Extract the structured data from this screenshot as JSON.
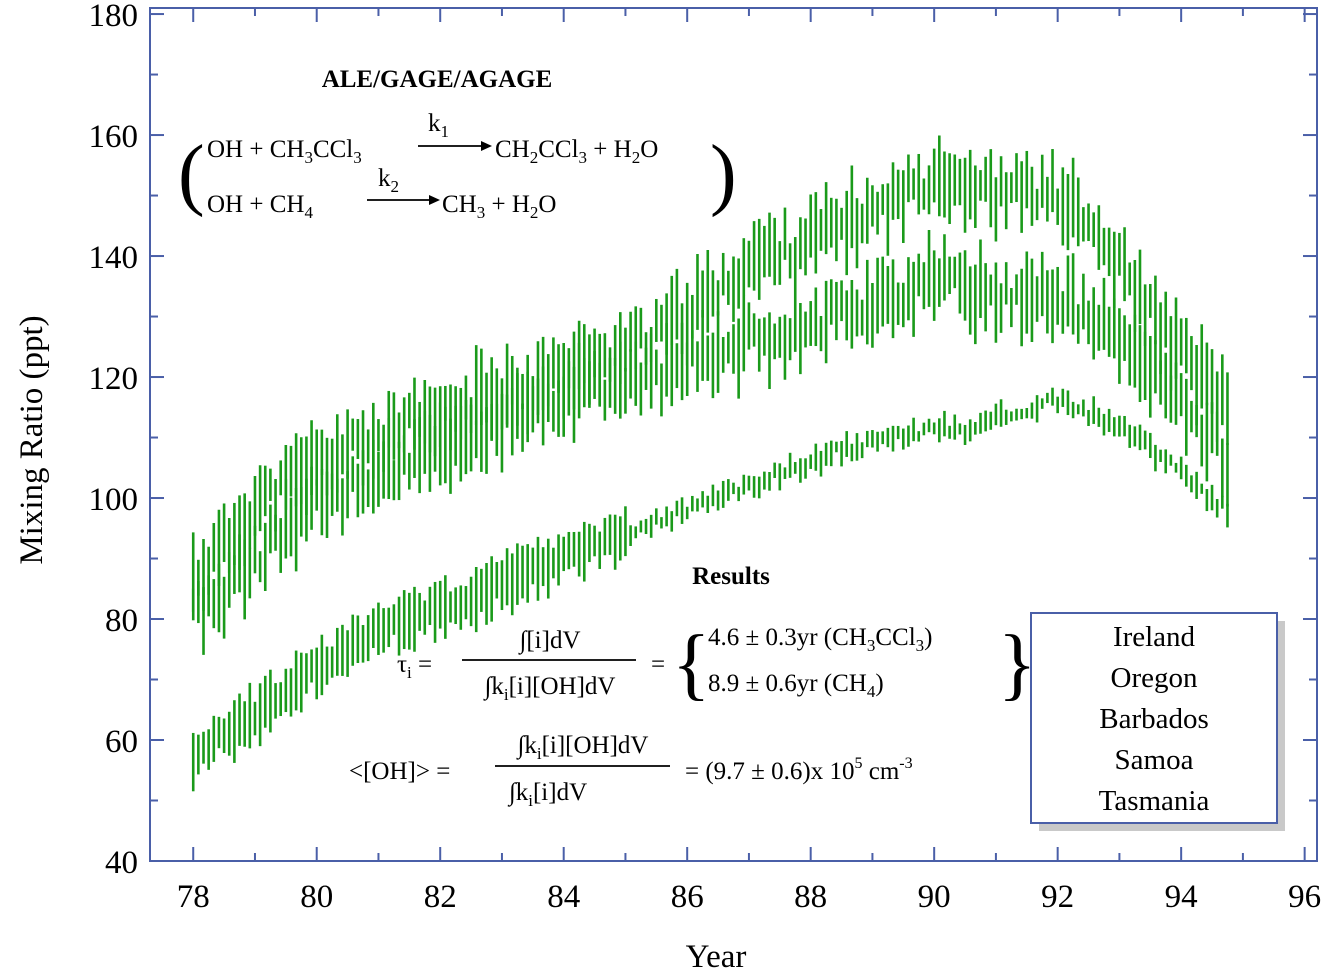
{
  "chart_data": {
    "type": "scatter",
    "title": "",
    "xlabel": "Year",
    "ylabel": "Mixing Ratio (ppt)",
    "xlim": [
      77.3,
      96.2
    ],
    "ylim": [
      40,
      181
    ],
    "x_ticks": [
      78,
      80,
      82,
      84,
      86,
      88,
      90,
      92,
      94,
      96
    ],
    "y_ticks": [
      40,
      60,
      80,
      100,
      120,
      140,
      160,
      180
    ],
    "grid": false,
    "series_color": "#1a9a1a",
    "frame_color": "#4a5fa8",
    "series": [
      {
        "band": "upper",
        "points": [
          [
            78.0,
            87
          ],
          [
            78.5,
            92
          ],
          [
            79.0,
            99
          ],
          [
            79.5,
            102
          ],
          [
            80.0,
            106
          ],
          [
            80.5,
            108
          ],
          [
            81.0,
            110
          ],
          [
            81.5,
            112
          ],
          [
            82.0,
            113
          ],
          [
            82.5,
            116
          ],
          [
            83.0,
            118
          ],
          [
            83.5,
            119
          ],
          [
            84.0,
            121
          ],
          [
            84.5,
            123
          ],
          [
            85.0,
            125
          ],
          [
            85.5,
            127
          ],
          [
            86.0,
            131
          ],
          [
            86.5,
            134
          ],
          [
            87.0,
            139
          ],
          [
            87.5,
            141
          ],
          [
            88.0,
            143
          ],
          [
            88.5,
            145
          ],
          [
            89.0,
            147
          ],
          [
            89.5,
            150
          ],
          [
            90.0,
            154
          ],
          [
            90.5,
            152
          ],
          [
            91.0,
            150
          ],
          [
            91.5,
            151
          ],
          [
            92.0,
            150
          ],
          [
            92.5,
            145
          ],
          [
            93.0,
            138
          ],
          [
            93.5,
            131
          ],
          [
            94.0,
            124
          ],
          [
            94.5,
            118
          ],
          [
            94.8,
            115
          ]
        ]
      },
      {
        "band": "middle",
        "points": [
          [
            78.0,
            80
          ],
          [
            78.5,
            84
          ],
          [
            79.0,
            90
          ],
          [
            79.5,
            95
          ],
          [
            80.0,
            99
          ],
          [
            80.5,
            101
          ],
          [
            81.0,
            104
          ],
          [
            81.5,
            106
          ],
          [
            82.0,
            108
          ],
          [
            82.5,
            110
          ],
          [
            83.0,
            112
          ],
          [
            83.5,
            114
          ],
          [
            84.0,
            116
          ],
          [
            84.5,
            118
          ],
          [
            85.0,
            119
          ],
          [
            85.5,
            120
          ],
          [
            86.0,
            122
          ],
          [
            86.5,
            124
          ],
          [
            87.0,
            126
          ],
          [
            87.5,
            127
          ],
          [
            88.0,
            129
          ],
          [
            88.5,
            131
          ],
          [
            89.0,
            132
          ],
          [
            89.5,
            134
          ],
          [
            90.0,
            136
          ],
          [
            90.5,
            135
          ],
          [
            91.0,
            133
          ],
          [
            91.5,
            134
          ],
          [
            92.0,
            133
          ],
          [
            92.5,
            130
          ],
          [
            93.0,
            126
          ],
          [
            93.5,
            121
          ],
          [
            94.0,
            115
          ],
          [
            94.5,
            110
          ],
          [
            94.8,
            105
          ]
        ]
      },
      {
        "band": "lower",
        "points": [
          [
            78.0,
            57
          ],
          [
            78.5,
            61
          ],
          [
            79.0,
            64
          ],
          [
            79.5,
            68
          ],
          [
            80.0,
            72
          ],
          [
            80.5,
            75
          ],
          [
            81.0,
            78
          ],
          [
            81.5,
            80
          ],
          [
            82.0,
            82
          ],
          [
            82.5,
            83
          ],
          [
            83.0,
            86
          ],
          [
            83.5,
            88
          ],
          [
            84.0,
            90
          ],
          [
            84.5,
            92
          ],
          [
            85.0,
            94
          ],
          [
            85.5,
            96
          ],
          [
            86.0,
            98
          ],
          [
            86.5,
            100
          ],
          [
            87.0,
            102
          ],
          [
            87.5,
            104
          ],
          [
            88.0,
            106
          ],
          [
            88.5,
            108
          ],
          [
            89.0,
            109
          ],
          [
            89.5,
            110
          ],
          [
            90.0,
            112
          ],
          [
            90.5,
            111
          ],
          [
            91.0,
            113
          ],
          [
            91.5,
            115
          ],
          [
            92.0,
            116
          ],
          [
            92.5,
            114
          ],
          [
            93.0,
            112
          ],
          [
            93.5,
            108
          ],
          [
            94.0,
            104
          ],
          [
            94.5,
            100
          ],
          [
            94.8,
            97
          ]
        ]
      }
    ],
    "annotations": {
      "network": "ALE/GAGE/AGAGE",
      "results_heading": "Results"
    },
    "legend": {
      "position": "bottom-right",
      "items": [
        "Ireland",
        "Oregon",
        "Barbados",
        "Samoa",
        "Tasmania"
      ]
    }
  }
}
